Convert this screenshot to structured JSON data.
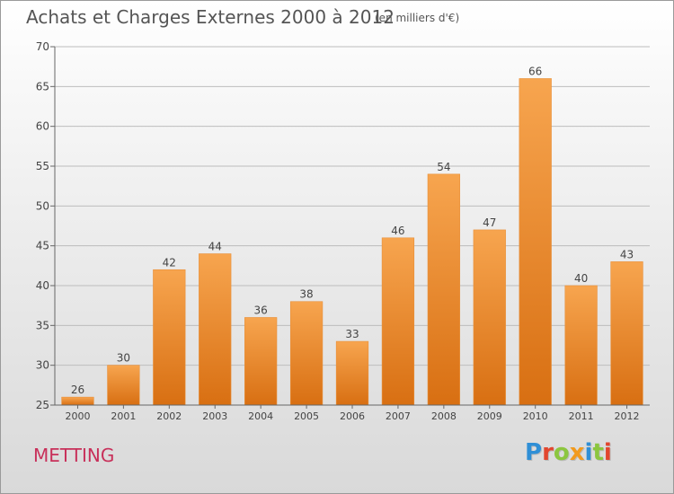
{
  "header": {
    "title": "Achats et Charges Externes 2000 à 2012",
    "subtitle": "(en milliers d'€)"
  },
  "footer": {
    "commune": "METTING",
    "logo": "Proxiti",
    "logo_letters": [
      {
        "ch": "P",
        "color": "#2f8fd6"
      },
      {
        "ch": "r",
        "color": "#e2462e"
      },
      {
        "ch": "o",
        "color": "#8cc63f"
      },
      {
        "ch": "x",
        "color": "#f29a1d"
      },
      {
        "ch": "i",
        "color": "#2f8fd6"
      },
      {
        "ch": "t",
        "color": "#8cc63f"
      },
      {
        "ch": "i",
        "color": "#e2462e"
      }
    ]
  },
  "colors": {
    "bar_light": "#f7a54f",
    "bar_dark": "#d86f12",
    "axis": "#666666",
    "grid": "#bdbdbd",
    "commune": "#c8305a"
  },
  "chart_data": {
    "type": "bar",
    "title": "Achats et Charges Externes 2000 à 2012",
    "subtitle": "(en milliers d'€)",
    "categories": [
      "2000",
      "2001",
      "2002",
      "2003",
      "2004",
      "2005",
      "2006",
      "2007",
      "2008",
      "2009",
      "2010",
      "2011",
      "2012"
    ],
    "values": [
      26,
      30,
      42,
      44,
      36,
      38,
      33,
      46,
      54,
      47,
      66,
      40,
      43
    ],
    "ylim": [
      25,
      70
    ],
    "yticks": [
      25,
      30,
      35,
      40,
      45,
      50,
      55,
      60,
      65,
      70
    ],
    "grid": true,
    "data_labels": true
  }
}
